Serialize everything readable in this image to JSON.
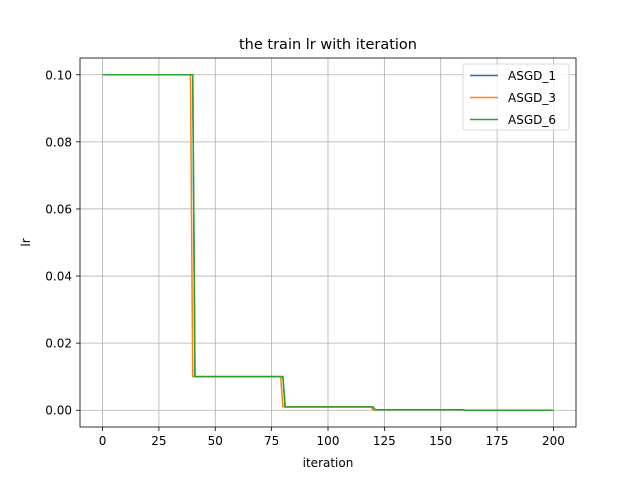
{
  "chart_data": {
    "type": "line",
    "title": "the train lr with iteration",
    "xlabel": "iteration",
    "ylabel": "lr",
    "xlim": [
      -10,
      210
    ],
    "ylim": [
      -0.005,
      0.105
    ],
    "xticks": [
      0,
      25,
      50,
      75,
      100,
      125,
      150,
      175,
      200
    ],
    "xtick_labels": [
      "0",
      "25",
      "50",
      "75",
      "100",
      "125",
      "150",
      "175",
      "200"
    ],
    "yticks": [
      0.0,
      0.02,
      0.04,
      0.06,
      0.08,
      0.1
    ],
    "ytick_labels": [
      "0.00",
      "0.02",
      "0.04",
      "0.06",
      "0.08",
      "0.10"
    ],
    "grid": true,
    "legend_position": "top-right",
    "series": [
      {
        "name": "ASGD_1",
        "color": "#1f77b4",
        "x": [
          0,
          39,
          40,
          41,
          79,
          80,
          81,
          119,
          120,
          121,
          159,
          160,
          161,
          200
        ],
        "y": [
          0.1,
          0.1,
          0.1,
          0.01,
          0.01,
          0.01,
          0.001,
          0.001,
          0.001,
          0.0001,
          0.0001,
          0.0001,
          1e-05,
          1e-05
        ]
      },
      {
        "name": "ASGD_3",
        "color": "#ff7f0e",
        "x": [
          0,
          38,
          39,
          40,
          78,
          79,
          80,
          118,
          119,
          120,
          158,
          159,
          160,
          200
        ],
        "y": [
          0.1,
          0.1,
          0.1,
          0.01,
          0.01,
          0.01,
          0.001,
          0.001,
          0.001,
          0.0001,
          0.0001,
          0.0001,
          1e-05,
          1e-05
        ]
      },
      {
        "name": "ASGD_6",
        "color": "#2ca02c",
        "x": [
          0,
          38,
          40,
          41,
          79,
          80,
          81,
          119,
          120,
          121,
          159,
          160,
          161,
          200
        ],
        "y": [
          0.1,
          0.1,
          0.1,
          0.01,
          0.01,
          0.01,
          0.001,
          0.001,
          0.001,
          0.0001,
          0.0001,
          0.0001,
          1e-05,
          1e-05
        ]
      }
    ]
  }
}
